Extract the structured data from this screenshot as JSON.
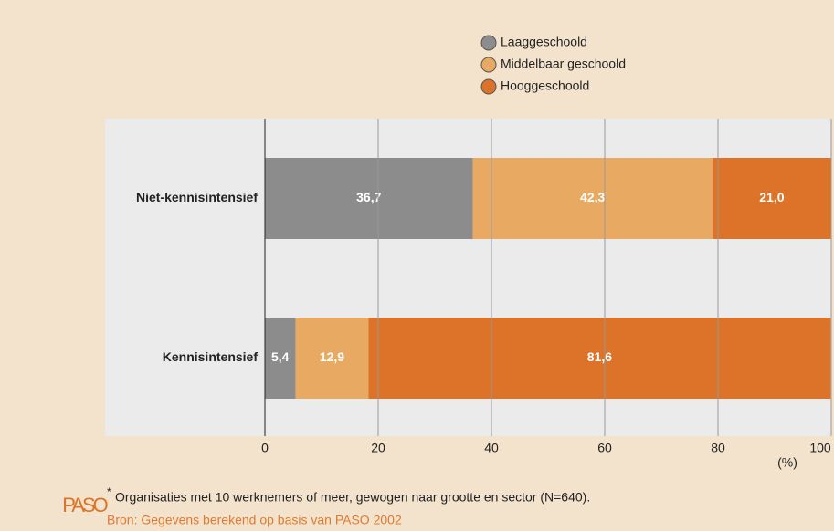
{
  "chart_data": {
    "type": "stacked_barh",
    "categories": [
      "Niet-kennisintensief",
      "Kennisintensief"
    ],
    "series": [
      {
        "name": "Laaggeschoold",
        "color": "#8c8c8c",
        "values": [
          36.7,
          5.4
        ],
        "value_labels": [
          "36,7",
          "5,4"
        ]
      },
      {
        "name": "Middelbaar geschoold",
        "color": "#e8aa62",
        "values": [
          42.3,
          12.9
        ],
        "value_labels": [
          "42,3",
          "12,9"
        ]
      },
      {
        "name": "Hooggeschoold",
        "color": "#dc7328",
        "values": [
          21.0,
          81.6
        ],
        "value_labels": [
          "21,0",
          "81,6"
        ]
      }
    ],
    "xlim": [
      0,
      100
    ],
    "xticks": [
      0,
      20,
      40,
      60,
      80,
      100
    ],
    "xlabel": "(%)",
    "grid": true,
    "legend": "top",
    "footnote_marker": "*",
    "footnote": "Organisaties met 10 werknemers of meer, gewogen naar grootte en sector (N=640).",
    "source": "Bron: Gegevens berekend op basis van PASO 2002",
    "logo": "PASO"
  }
}
